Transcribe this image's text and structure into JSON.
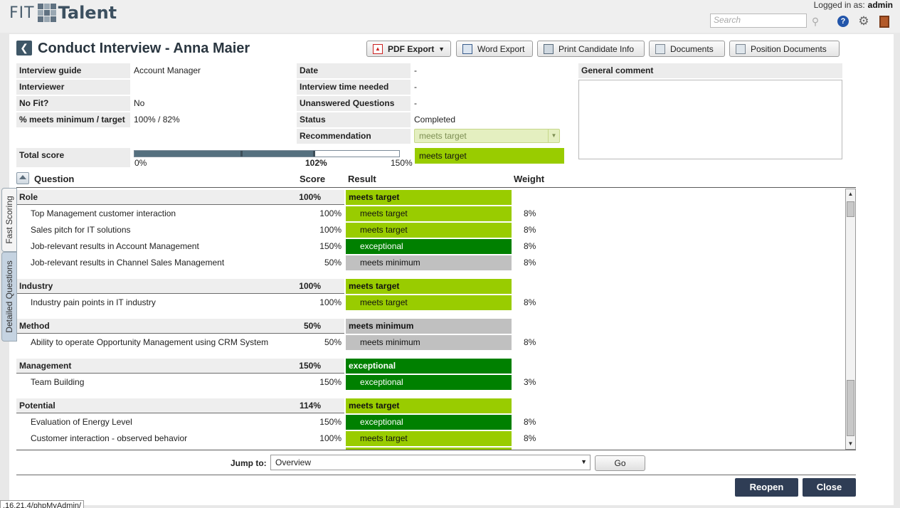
{
  "header": {
    "logo_left": "FIT",
    "logo_right": "Talent",
    "logged_in_label": "Logged in as:",
    "logged_in_user": "admin",
    "search_placeholder": "Search"
  },
  "page": {
    "title": "Conduct Interview - Anna Maier"
  },
  "toolbar": {
    "pdf_export": "PDF Export",
    "word_export": "Word Export",
    "print_candidate": "Print Candidate Info",
    "documents": "Documents",
    "position_documents": "Position Documents"
  },
  "info": {
    "interview_guide_label": "Interview guide",
    "interview_guide_value": "Account Manager",
    "interviewer_label": "Interviewer",
    "interviewer_value": "",
    "no_fit_label": "No Fit?",
    "no_fit_value": "No",
    "meets_label": "% meets minimum / target",
    "meets_value": "100% / 82%",
    "date_label": "Date",
    "date_value": "-",
    "time_needed_label": "Interview time needed",
    "time_needed_value": "-",
    "unanswered_label": "Unanswered Questions",
    "unanswered_value": "-",
    "status_label": "Status",
    "status_value": "Completed",
    "recommendation_label": "Recommendation",
    "recommendation_value": "meets target",
    "general_comment_label": "General comment",
    "general_comment_value": ""
  },
  "total_score": {
    "label": "Total score",
    "tick_min": "0%",
    "tick_value": "102%",
    "tick_max": "150%",
    "value_percent": 102,
    "max_percent": 150,
    "result": "meets target"
  },
  "table": {
    "col_question": "Question",
    "col_score": "Score",
    "col_result": "Result",
    "col_weight": "Weight",
    "groups": [
      {
        "name": "Role",
        "score": "100%",
        "result": "meets target",
        "result_key": "meets_target",
        "items": [
          {
            "q": "Top Management customer interaction",
            "score": "100%",
            "result": "meets target",
            "result_key": "meets_target",
            "weight": "8%"
          },
          {
            "q": "Sales pitch for IT solutions",
            "score": "100%",
            "result": "meets target",
            "result_key": "meets_target",
            "weight": "8%"
          },
          {
            "q": "Job-relevant results in Account Management",
            "score": "150%",
            "result": "exceptional",
            "result_key": "exceptional",
            "weight": "8%"
          },
          {
            "q": "Job-relevant results in Channel Sales Management",
            "score": "50%",
            "result": "meets minimum",
            "result_key": "meets_minimum",
            "weight": "8%"
          }
        ]
      },
      {
        "name": "Industry",
        "score": "100%",
        "result": "meets target",
        "result_key": "meets_target",
        "items": [
          {
            "q": "Industry pain points in IT industry",
            "score": "100%",
            "result": "meets target",
            "result_key": "meets_target",
            "weight": "8%"
          }
        ]
      },
      {
        "name": "Method",
        "score": "50%",
        "result": "meets minimum",
        "result_key": "meets_minimum",
        "items": [
          {
            "q": "Ability to operate Opportunity Management using CRM System",
            "score": "50%",
            "result": "meets minimum",
            "result_key": "meets_minimum",
            "weight": "8%"
          }
        ]
      },
      {
        "name": "Management",
        "score": "150%",
        "result": "exceptional",
        "result_key": "exceptional",
        "items": [
          {
            "q": "Team Building",
            "score": "150%",
            "result": "exceptional",
            "result_key": "exceptional",
            "weight": "3%"
          }
        ]
      },
      {
        "name": "Potential",
        "score": "114%",
        "result": "meets target",
        "result_key": "meets_target",
        "items": [
          {
            "q": "Evaluation of Energy Level",
            "score": "150%",
            "result": "exceptional",
            "result_key": "exceptional",
            "weight": "8%"
          },
          {
            "q": "Customer interaction - observed behavior",
            "score": "100%",
            "result": "meets target",
            "result_key": "meets_target",
            "weight": "8%"
          },
          {
            "q": "",
            "score": "",
            "result": "",
            "result_key": "meets_target",
            "weight": ""
          }
        ]
      }
    ]
  },
  "jump": {
    "label": "Jump to:",
    "value": "Overview",
    "go": "Go"
  },
  "footer": {
    "reopen": "Reopen",
    "close": "Close"
  },
  "side_tabs": {
    "fast_scoring": "Fast Scoring",
    "detailed_questions": "Detailed Questions"
  },
  "statusbar": {
    "text": ".16.21.4/phpMyAdmin/"
  },
  "icons": {
    "search": "search-icon",
    "help": "help-icon",
    "settings": "gear-icon",
    "logout": "logout-door-icon",
    "back": "back-arrow-icon",
    "pdf": "pdf-icon",
    "word": "word-icon",
    "print": "printer-icon",
    "documents": "document-icon",
    "collapse": "collapse-up-icon"
  },
  "colors": {
    "meets_target": "#99cc00",
    "exceptional": "#008000",
    "meets_minimum": "#c0c0c0",
    "primary_button": "#2f3d55"
  }
}
